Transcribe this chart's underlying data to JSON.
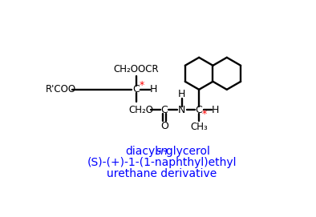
{
  "title_line1_pre": "diacyl-",
  "title_line1_italic": "sn",
  "title_line1_post": "-glycerol",
  "title_line2": "(S)-(+)-1-(1-naphthyl)ethyl",
  "title_line3": "urethane derivative",
  "title_color": "#0000ff",
  "structure_color": "#000000",
  "red_color": "#ff0000",
  "bg_color": "#ffffff",
  "fig_width": 3.94,
  "fig_height": 2.71,
  "dpi": 100
}
